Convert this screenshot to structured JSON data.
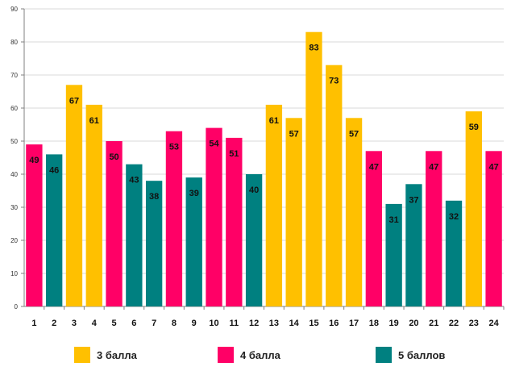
{
  "chart_data": {
    "type": "bar",
    "title": "",
    "xlabel": "",
    "ylabel": "",
    "ylim": [
      0,
      90
    ],
    "y_ticks": [
      0,
      10,
      20,
      30,
      40,
      50,
      60,
      70,
      80,
      90
    ],
    "grid": true,
    "categories": [
      "1",
      "2",
      "3",
      "4",
      "5",
      "6",
      "7",
      "8",
      "9",
      "10",
      "11",
      "12",
      "13",
      "14",
      "15",
      "16",
      "17",
      "18",
      "19",
      "20",
      "21",
      "22",
      "23",
      "24"
    ],
    "values": [
      49,
      46,
      67,
      61,
      50,
      43,
      38,
      53,
      39,
      54,
      51,
      40,
      61,
      57,
      83,
      73,
      57,
      47,
      31,
      37,
      47,
      32,
      59,
      47
    ],
    "groups": [
      "4",
      "5",
      "3",
      "3",
      "4",
      "5",
      "5",
      "4",
      "5",
      "4",
      "4",
      "5",
      "3",
      "3",
      "3",
      "3",
      "3",
      "4",
      "5",
      "5",
      "4",
      "5",
      "3",
      "4"
    ],
    "legend": [
      {
        "key": "3",
        "label": "3 балла",
        "color": "#FFC000"
      },
      {
        "key": "4",
        "label": "4 балла",
        "color": "#FF0066"
      },
      {
        "key": "5",
        "label": "5 баллов",
        "color": "#008080"
      }
    ],
    "legend_position": "bottom"
  }
}
